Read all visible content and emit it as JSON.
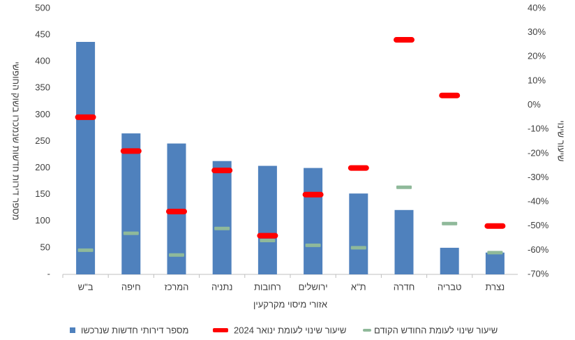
{
  "chart_data": {
    "type": "bar",
    "x_label": "אזורי מיסוי מקרקעין",
    "y_label": "מספר דירות חדשות שנמכרו בשוק החופשי",
    "y2_label": "שיעור שינוי",
    "categories": [
      "ב\"ש",
      "חיפה",
      "המרכז",
      "נתניה",
      "רחובות",
      "ירושלים",
      "ת\"א",
      "חדרה",
      "טבריה",
      "נצרת"
    ],
    "series": [
      {
        "name": "מספר דירותי חדשות שנרכשו",
        "color": "#4f81bd",
        "mark": "bar",
        "values": [
          437,
          265,
          246,
          213,
          204,
          200,
          152,
          121,
          50,
          41
        ]
      },
      {
        "name": "שיעור שינוי לעומת ינואר 2024",
        "color": "#ff0000",
        "mark": "dash",
        "axis": "y2",
        "values": [
          -5,
          -19,
          -44,
          -27,
          -54,
          -37,
          -26,
          27,
          4,
          -50
        ]
      },
      {
        "name": "שיעור שינוי לעומת החודש הקודם",
        "color": "#8fb99a",
        "mark": "dash",
        "axis": "y2",
        "values": [
          -60,
          -53,
          -62,
          -51,
          -56,
          -58,
          -59,
          -34,
          -49,
          -61
        ]
      }
    ],
    "ylim": [
      0,
      500
    ],
    "yticks": [
      {
        "value": 0,
        "label": "-"
      },
      50,
      100,
      150,
      200,
      250,
      300,
      350,
      400,
      450,
      500
    ],
    "y2lim": [
      -70,
      40
    ],
    "y2ticks": [
      {
        "value": -70,
        "label": "-70%"
      },
      {
        "value": -60,
        "label": "-60%"
      },
      {
        "value": -50,
        "label": "-50%"
      },
      {
        "value": -40,
        "label": "-40%"
      },
      {
        "value": -30,
        "label": "-30%"
      },
      {
        "value": -20,
        "label": "-20%"
      },
      {
        "value": -10,
        "label": "-10%"
      },
      {
        "value": 0,
        "label": "0%"
      },
      {
        "value": 10,
        "label": "10%"
      },
      {
        "value": 20,
        "label": "20%"
      },
      {
        "value": 30,
        "label": "30%"
      },
      {
        "value": 40,
        "label": "40%"
      }
    ],
    "grid": false,
    "legend": "bottom"
  }
}
